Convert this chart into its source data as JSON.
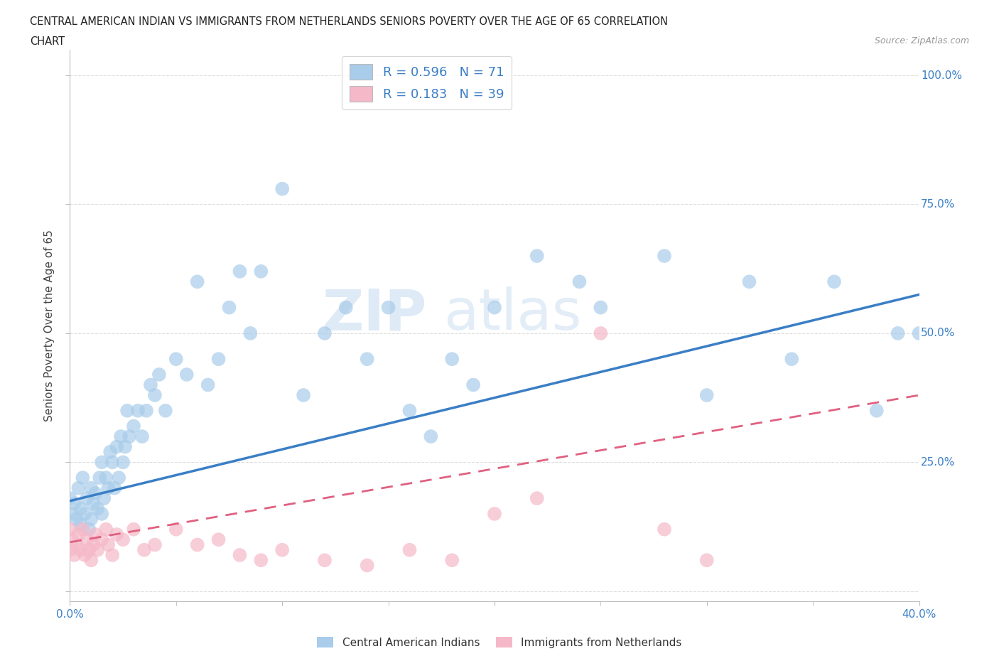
{
  "title_line1": "CENTRAL AMERICAN INDIAN VS IMMIGRANTS FROM NETHERLANDS SENIORS POVERTY OVER THE AGE OF 65 CORRELATION",
  "title_line2": "CHART",
  "source_text": "Source: ZipAtlas.com",
  "ylabel": "Seniors Poverty Over the Age of 65",
  "xmin": 0.0,
  "xmax": 0.4,
  "ymin": -0.02,
  "ymax": 1.05,
  "R_blue": 0.596,
  "N_blue": 71,
  "R_pink": 0.183,
  "N_pink": 39,
  "blue_color": "#A8CCEA",
  "pink_color": "#F5B8C8",
  "blue_line_color": "#3A7EC6",
  "pink_line_color": "#E06080",
  "blue_scatter_x": [
    0.0,
    0.001,
    0.002,
    0.003,
    0.004,
    0.005,
    0.005,
    0.006,
    0.007,
    0.008,
    0.009,
    0.01,
    0.01,
    0.011,
    0.012,
    0.013,
    0.014,
    0.015,
    0.015,
    0.016,
    0.017,
    0.018,
    0.019,
    0.02,
    0.021,
    0.022,
    0.023,
    0.024,
    0.025,
    0.026,
    0.027,
    0.028,
    0.03,
    0.032,
    0.034,
    0.036,
    0.038,
    0.04,
    0.042,
    0.045,
    0.05,
    0.055,
    0.06,
    0.065,
    0.07,
    0.075,
    0.08,
    0.085,
    0.09,
    0.1,
    0.11,
    0.12,
    0.13,
    0.14,
    0.15,
    0.16,
    0.17,
    0.18,
    0.19,
    0.2,
    0.22,
    0.24,
    0.25,
    0.28,
    0.3,
    0.32,
    0.34,
    0.36,
    0.38,
    0.39,
    0.4
  ],
  "blue_scatter_y": [
    0.18,
    0.15,
    0.17,
    0.14,
    0.2,
    0.13,
    0.16,
    0.22,
    0.15,
    0.18,
    0.12,
    0.14,
    0.2,
    0.17,
    0.19,
    0.16,
    0.22,
    0.15,
    0.25,
    0.18,
    0.22,
    0.2,
    0.27,
    0.25,
    0.2,
    0.28,
    0.22,
    0.3,
    0.25,
    0.28,
    0.35,
    0.3,
    0.32,
    0.35,
    0.3,
    0.35,
    0.4,
    0.38,
    0.42,
    0.35,
    0.45,
    0.42,
    0.6,
    0.4,
    0.45,
    0.55,
    0.62,
    0.5,
    0.62,
    0.78,
    0.38,
    0.5,
    0.55,
    0.45,
    0.55,
    0.35,
    0.3,
    0.45,
    0.4,
    0.55,
    0.65,
    0.6,
    0.55,
    0.65,
    0.38,
    0.6,
    0.45,
    0.6,
    0.35,
    0.5,
    0.5
  ],
  "pink_scatter_x": [
    0.0,
    0.0,
    0.001,
    0.002,
    0.003,
    0.004,
    0.005,
    0.006,
    0.007,
    0.008,
    0.009,
    0.01,
    0.011,
    0.012,
    0.013,
    0.015,
    0.017,
    0.018,
    0.02,
    0.022,
    0.025,
    0.03,
    0.035,
    0.04,
    0.05,
    0.06,
    0.07,
    0.08,
    0.09,
    0.1,
    0.12,
    0.14,
    0.16,
    0.18,
    0.2,
    0.22,
    0.25,
    0.28,
    0.3
  ],
  "pink_scatter_y": [
    0.08,
    0.12,
    0.1,
    0.07,
    0.09,
    0.11,
    0.08,
    0.12,
    0.07,
    0.1,
    0.08,
    0.06,
    0.09,
    0.11,
    0.08,
    0.1,
    0.12,
    0.09,
    0.07,
    0.11,
    0.1,
    0.12,
    0.08,
    0.09,
    0.12,
    0.09,
    0.1,
    0.07,
    0.06,
    0.08,
    0.06,
    0.05,
    0.08,
    0.06,
    0.15,
    0.18,
    0.5,
    0.12,
    0.06
  ],
  "blue_trendline_x0": 0.0,
  "blue_trendline_y0": 0.175,
  "blue_trendline_x1": 0.4,
  "blue_trendline_y1": 0.575,
  "pink_trendline_x0": 0.0,
  "pink_trendline_y0": 0.095,
  "pink_trendline_x1": 0.4,
  "pink_trendline_y1": 0.38,
  "background_color": "#FFFFFF",
  "grid_color": "#DDDDDD",
  "tick_label_color": "#3A7EC6",
  "axis_color": "#BBBBBB"
}
